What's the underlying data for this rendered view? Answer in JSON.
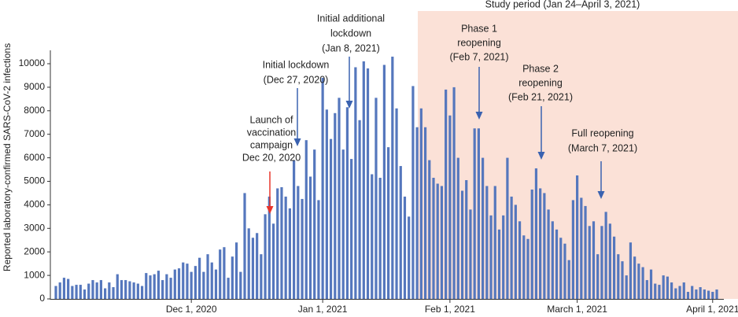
{
  "chart_data": {
    "type": "bar",
    "y_label": "Reported laboratory-confirmed SARS-CoV-2 infections",
    "shaded_region_label": "Study period (Jan 24–April 3, 2021)",
    "annotations": [
      {
        "lines": [
          "Launch of",
          "vaccination",
          "campaign",
          "Dec 20, 2020"
        ],
        "color": "#e8352b"
      },
      {
        "lines": [
          "Initial lockdown",
          "(Dec 27, 2020)"
        ],
        "color": "#3a62b0"
      },
      {
        "lines": [
          "Initial additional",
          "lockdown",
          "(Jan 8, 2021)"
        ],
        "color": "#3a62b0"
      },
      {
        "lines": [
          "Phase 1",
          "reopening",
          "(Feb 7, 2021)"
        ],
        "color": "#3a62b0"
      },
      {
        "lines": [
          "Phase 2",
          "reopening",
          "(Feb 21, 2021)"
        ],
        "color": "#3a62b0"
      },
      {
        "lines": [
          "Full reopening",
          "(March 7, 2021)"
        ],
        "color": "#3a62b0"
      }
    ],
    "categories": [
      null,
      null,
      null,
      null,
      null,
      null,
      null,
      null,
      null,
      null,
      null,
      null,
      null,
      null,
      null,
      null,
      null,
      null,
      null,
      null,
      null,
      null,
      null,
      null,
      null,
      null,
      null,
      null,
      null,
      null,
      null,
      null,
      null,
      "Dec 1, 2020",
      null,
      null,
      null,
      null,
      null,
      null,
      null,
      null,
      null,
      null,
      null,
      null,
      null,
      null,
      null,
      null,
      null,
      null,
      null,
      null,
      null,
      null,
      null,
      null,
      null,
      null,
      null,
      null,
      null,
      null,
      null,
      "Jan 1, 2021",
      null,
      null,
      null,
      null,
      null,
      null,
      null,
      null,
      null,
      null,
      null,
      null,
      null,
      null,
      null,
      null,
      null,
      null,
      null,
      null,
      null,
      null,
      null,
      null,
      null,
      null,
      null,
      null,
      null,
      null,
      "Feb 1, 2021",
      null,
      null,
      null,
      null,
      null,
      null,
      null,
      null,
      null,
      null,
      null,
      null,
      null,
      null,
      null,
      null,
      null,
      null,
      null,
      null,
      null,
      null,
      null,
      null,
      null,
      null,
      null,
      null,
      null,
      null,
      "March 1, 2021",
      null,
      null,
      null,
      null,
      null,
      null,
      null,
      null,
      null,
      null,
      null,
      null,
      null,
      null,
      null,
      null,
      null,
      null,
      null,
      null,
      null,
      null,
      null,
      null,
      null,
      null,
      null,
      null,
      null,
      null,
      null,
      null,
      "April 1, 2021",
      null
    ],
    "values": [
      550,
      700,
      900,
      850,
      550,
      600,
      600,
      400,
      650,
      800,
      700,
      800,
      450,
      700,
      500,
      1050,
      800,
      800,
      750,
      700,
      650,
      550,
      1100,
      1000,
      1050,
      1200,
      800,
      1050,
      900,
      1250,
      1300,
      1550,
      1500,
      1150,
      1400,
      1750,
      1150,
      1900,
      1550,
      1250,
      2100,
      2200,
      900,
      1800,
      2400,
      1150,
      4500,
      3000,
      2600,
      2800,
      1900,
      3600,
      4350,
      3200,
      4700,
      4750,
      4350,
      3850,
      5900,
      4800,
      4250,
      6750,
      5200,
      6350,
      4200,
      9400,
      8050,
      6800,
      7900,
      8550,
      6350,
      8150,
      5950,
      9850,
      7600,
      10100,
      9800,
      5300,
      8550,
      5150,
      9950,
      6450,
      10300,
      8100,
      5650,
      4350,
      3500,
      9050,
      7300,
      8100,
      7300,
      5900,
      5150,
      4900,
      4800,
      8900,
      7800,
      9000,
      6000,
      4600,
      5050,
      3800,
      7250,
      7250,
      6000,
      4800,
      3550,
      4800,
      2950,
      3550,
      6000,
      4350,
      4000,
      3300,
      2700,
      2550,
      4650,
      5550,
      4700,
      4500,
      3800,
      3300,
      2950,
      2600,
      2350,
      1650,
      4200,
      5250,
      4300,
      3950,
      3100,
      3300,
      1900,
      3100,
      3700,
      3200,
      2650,
      1900,
      1600,
      1000,
      2400,
      1800,
      1500,
      1350,
      800,
      1250,
      650,
      600,
      1000,
      950,
      700,
      450,
      550,
      700,
      300,
      550,
      400,
      500,
      400,
      350,
      300,
      400
    ],
    "color": "#5577bd",
    "shade_color": "#fbe1d7",
    "ylim": [
      0,
      10500
    ],
    "yticks": [
      0,
      1000,
      2000,
      3000,
      4000,
      5000,
      6000,
      7000,
      8000,
      9000,
      10000
    ]
  }
}
